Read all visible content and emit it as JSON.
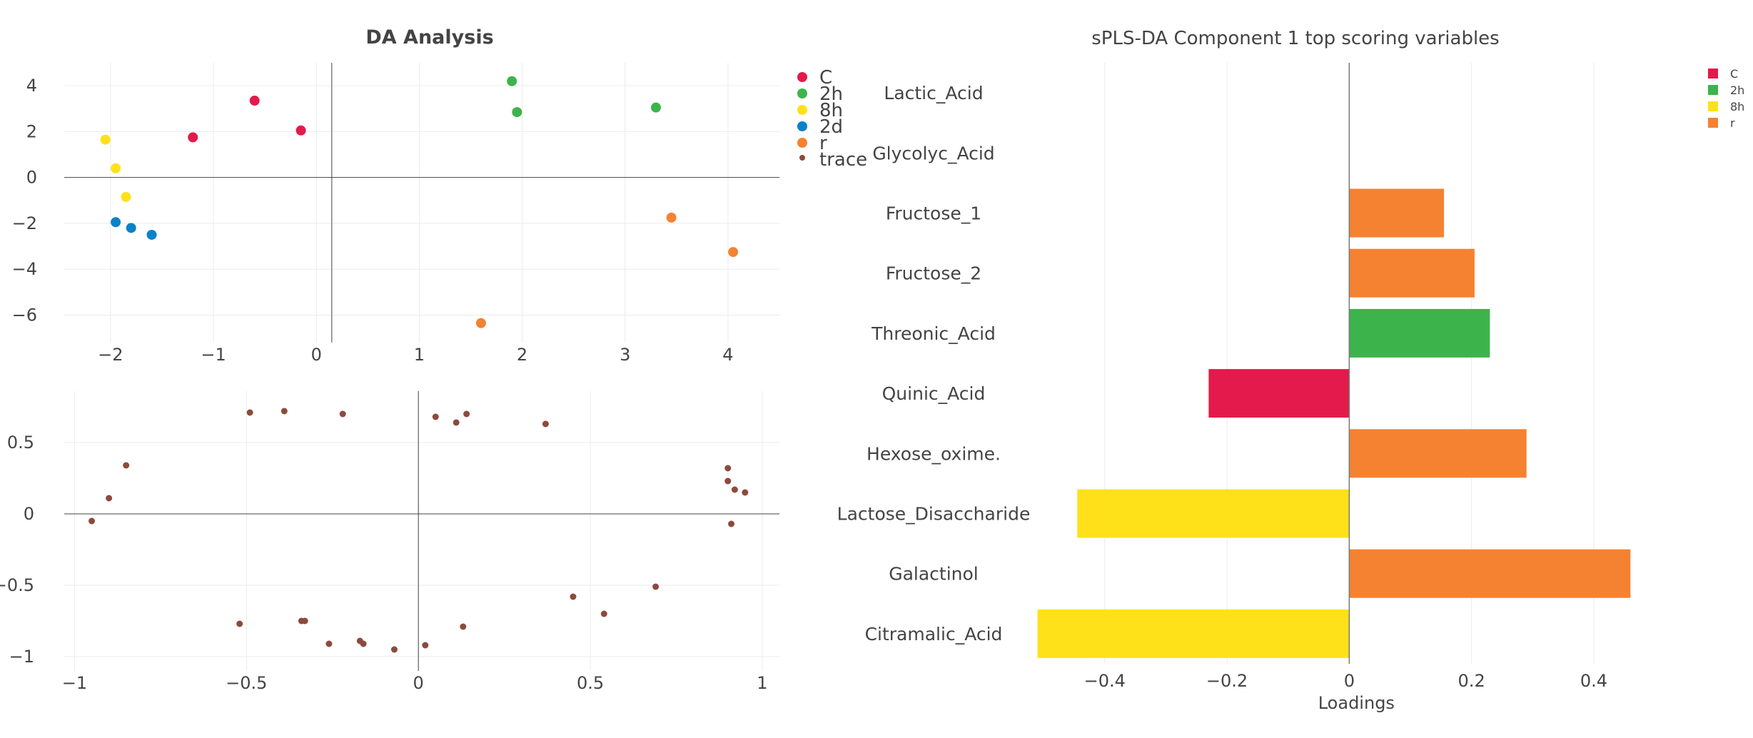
{
  "chart_data": [
    {
      "type": "scatter",
      "title": "DA Analysis",
      "xlim": [
        -2.45,
        4.5
      ],
      "ylim": [
        -7.2,
        5.0
      ],
      "xticks": [
        "−2",
        "−1",
        "0",
        "1",
        "2",
        "3",
        "4"
      ],
      "xtick_values": [
        -2,
        -1,
        0,
        1,
        2,
        3,
        4
      ],
      "yticks": [
        "4",
        "2",
        "0",
        "−2",
        "−4",
        "−6"
      ],
      "ytick_values": [
        4,
        2,
        0,
        -2,
        -4,
        -6
      ],
      "legend": [
        "C",
        "2h",
        "8h",
        "2d",
        "r",
        "trace"
      ],
      "legend_position": "right",
      "series": [
        {
          "name": "C",
          "color": "#e31a4b",
          "points": [
            [
              -0.6,
              3.35
            ],
            [
              -1.2,
              1.75
            ],
            [
              -0.15,
              2.05
            ]
          ]
        },
        {
          "name": "2h",
          "color": "#3cb44b",
          "points": [
            [
              1.9,
              4.2
            ],
            [
              1.95,
              2.85
            ],
            [
              3.3,
              3.05
            ]
          ]
        },
        {
          "name": "8h",
          "color": "#ffe119",
          "points": [
            [
              -2.05,
              1.65
            ],
            [
              -1.95,
              0.4
            ],
            [
              -1.85,
              -0.85
            ]
          ]
        },
        {
          "name": "2d",
          "color": "#0a82c8",
          "points": [
            [
              -1.95,
              -1.95
            ],
            [
              -1.8,
              -2.2
            ],
            [
              -1.6,
              -2.5
            ]
          ]
        },
        {
          "name": "r",
          "color": "#f58231",
          "points": [
            [
              3.45,
              -1.75
            ],
            [
              4.05,
              -3.25
            ],
            [
              1.6,
              -6.35
            ]
          ]
        }
      ]
    },
    {
      "type": "scatter",
      "xlim": [
        -1.03,
        1.05
      ],
      "ylim": [
        -1.1,
        0.86
      ],
      "xticks": [
        "−1",
        "−0.5",
        "0",
        "0.5",
        "1"
      ],
      "xtick_values": [
        -1,
        -0.5,
        0,
        0.5,
        1
      ],
      "yticks": [
        "0.5",
        "0",
        "−0.5",
        "−1"
      ],
      "ytick_values": [
        0.5,
        0,
        -0.5,
        -1
      ],
      "series": [
        {
          "name": "trace",
          "color": "#8c4a3c",
          "points": [
            [
              -0.49,
              0.71
            ],
            [
              -0.39,
              0.72
            ],
            [
              -0.22,
              0.7
            ],
            [
              0.05,
              0.68
            ],
            [
              0.11,
              0.64
            ],
            [
              0.14,
              0.7
            ],
            [
              0.37,
              0.63
            ],
            [
              -0.85,
              0.34
            ],
            [
              -0.9,
              0.11
            ],
            [
              -0.95,
              -0.05
            ],
            [
              0.9,
              0.32
            ],
            [
              0.9,
              0.23
            ],
            [
              0.92,
              0.17
            ],
            [
              0.95,
              0.15
            ],
            [
              0.91,
              -0.07
            ],
            [
              0.69,
              -0.51
            ],
            [
              0.45,
              -0.58
            ],
            [
              0.54,
              -0.7
            ],
            [
              -0.52,
              -0.77
            ],
            [
              -0.34,
              -0.75
            ],
            [
              -0.33,
              -0.75
            ],
            [
              -0.26,
              -0.91
            ],
            [
              -0.17,
              -0.89
            ],
            [
              -0.16,
              -0.91
            ],
            [
              -0.07,
              -0.95
            ],
            [
              0.02,
              -0.92
            ],
            [
              0.13,
              -0.79
            ]
          ]
        }
      ]
    },
    {
      "type": "bar",
      "orientation": "horizontal",
      "title": "sPLS-DA Component 1 top scoring variables",
      "xlabel": "Loadings",
      "xlim": [
        -0.52,
        0.49
      ],
      "xticks": [
        "−0.4",
        "−0.2",
        "0",
        "0.2",
        "0.4"
      ],
      "xtick_values": [
        -0.4,
        -0.2,
        0,
        0.2,
        0.4
      ],
      "categories": [
        "Lactic_Acid",
        "Glycolyc_Acid",
        "Fructose_1",
        "Fructose_2",
        "Threonic_Acid",
        "Quinic_Acid",
        "Hexose_oxime.",
        "Lactose_Disaccharide",
        "Galactinol",
        "Citramalic_Acid"
      ],
      "values": [
        0,
        0,
        0.155,
        0.205,
        0.23,
        -0.23,
        0.29,
        -0.445,
        0.46,
        -0.51
      ],
      "groups": [
        "",
        "",
        "r",
        "r",
        "2h",
        "C",
        "r",
        "8h",
        "r",
        "8h"
      ],
      "legend": [
        {
          "name": "C",
          "color": "#e31a4b"
        },
        {
          "name": "2h",
          "color": "#3cb44b"
        },
        {
          "name": "8h",
          "color": "#ffe119"
        },
        {
          "name": "r",
          "color": "#f58231"
        }
      ],
      "legend_position": "top-right",
      "grid": true
    }
  ]
}
